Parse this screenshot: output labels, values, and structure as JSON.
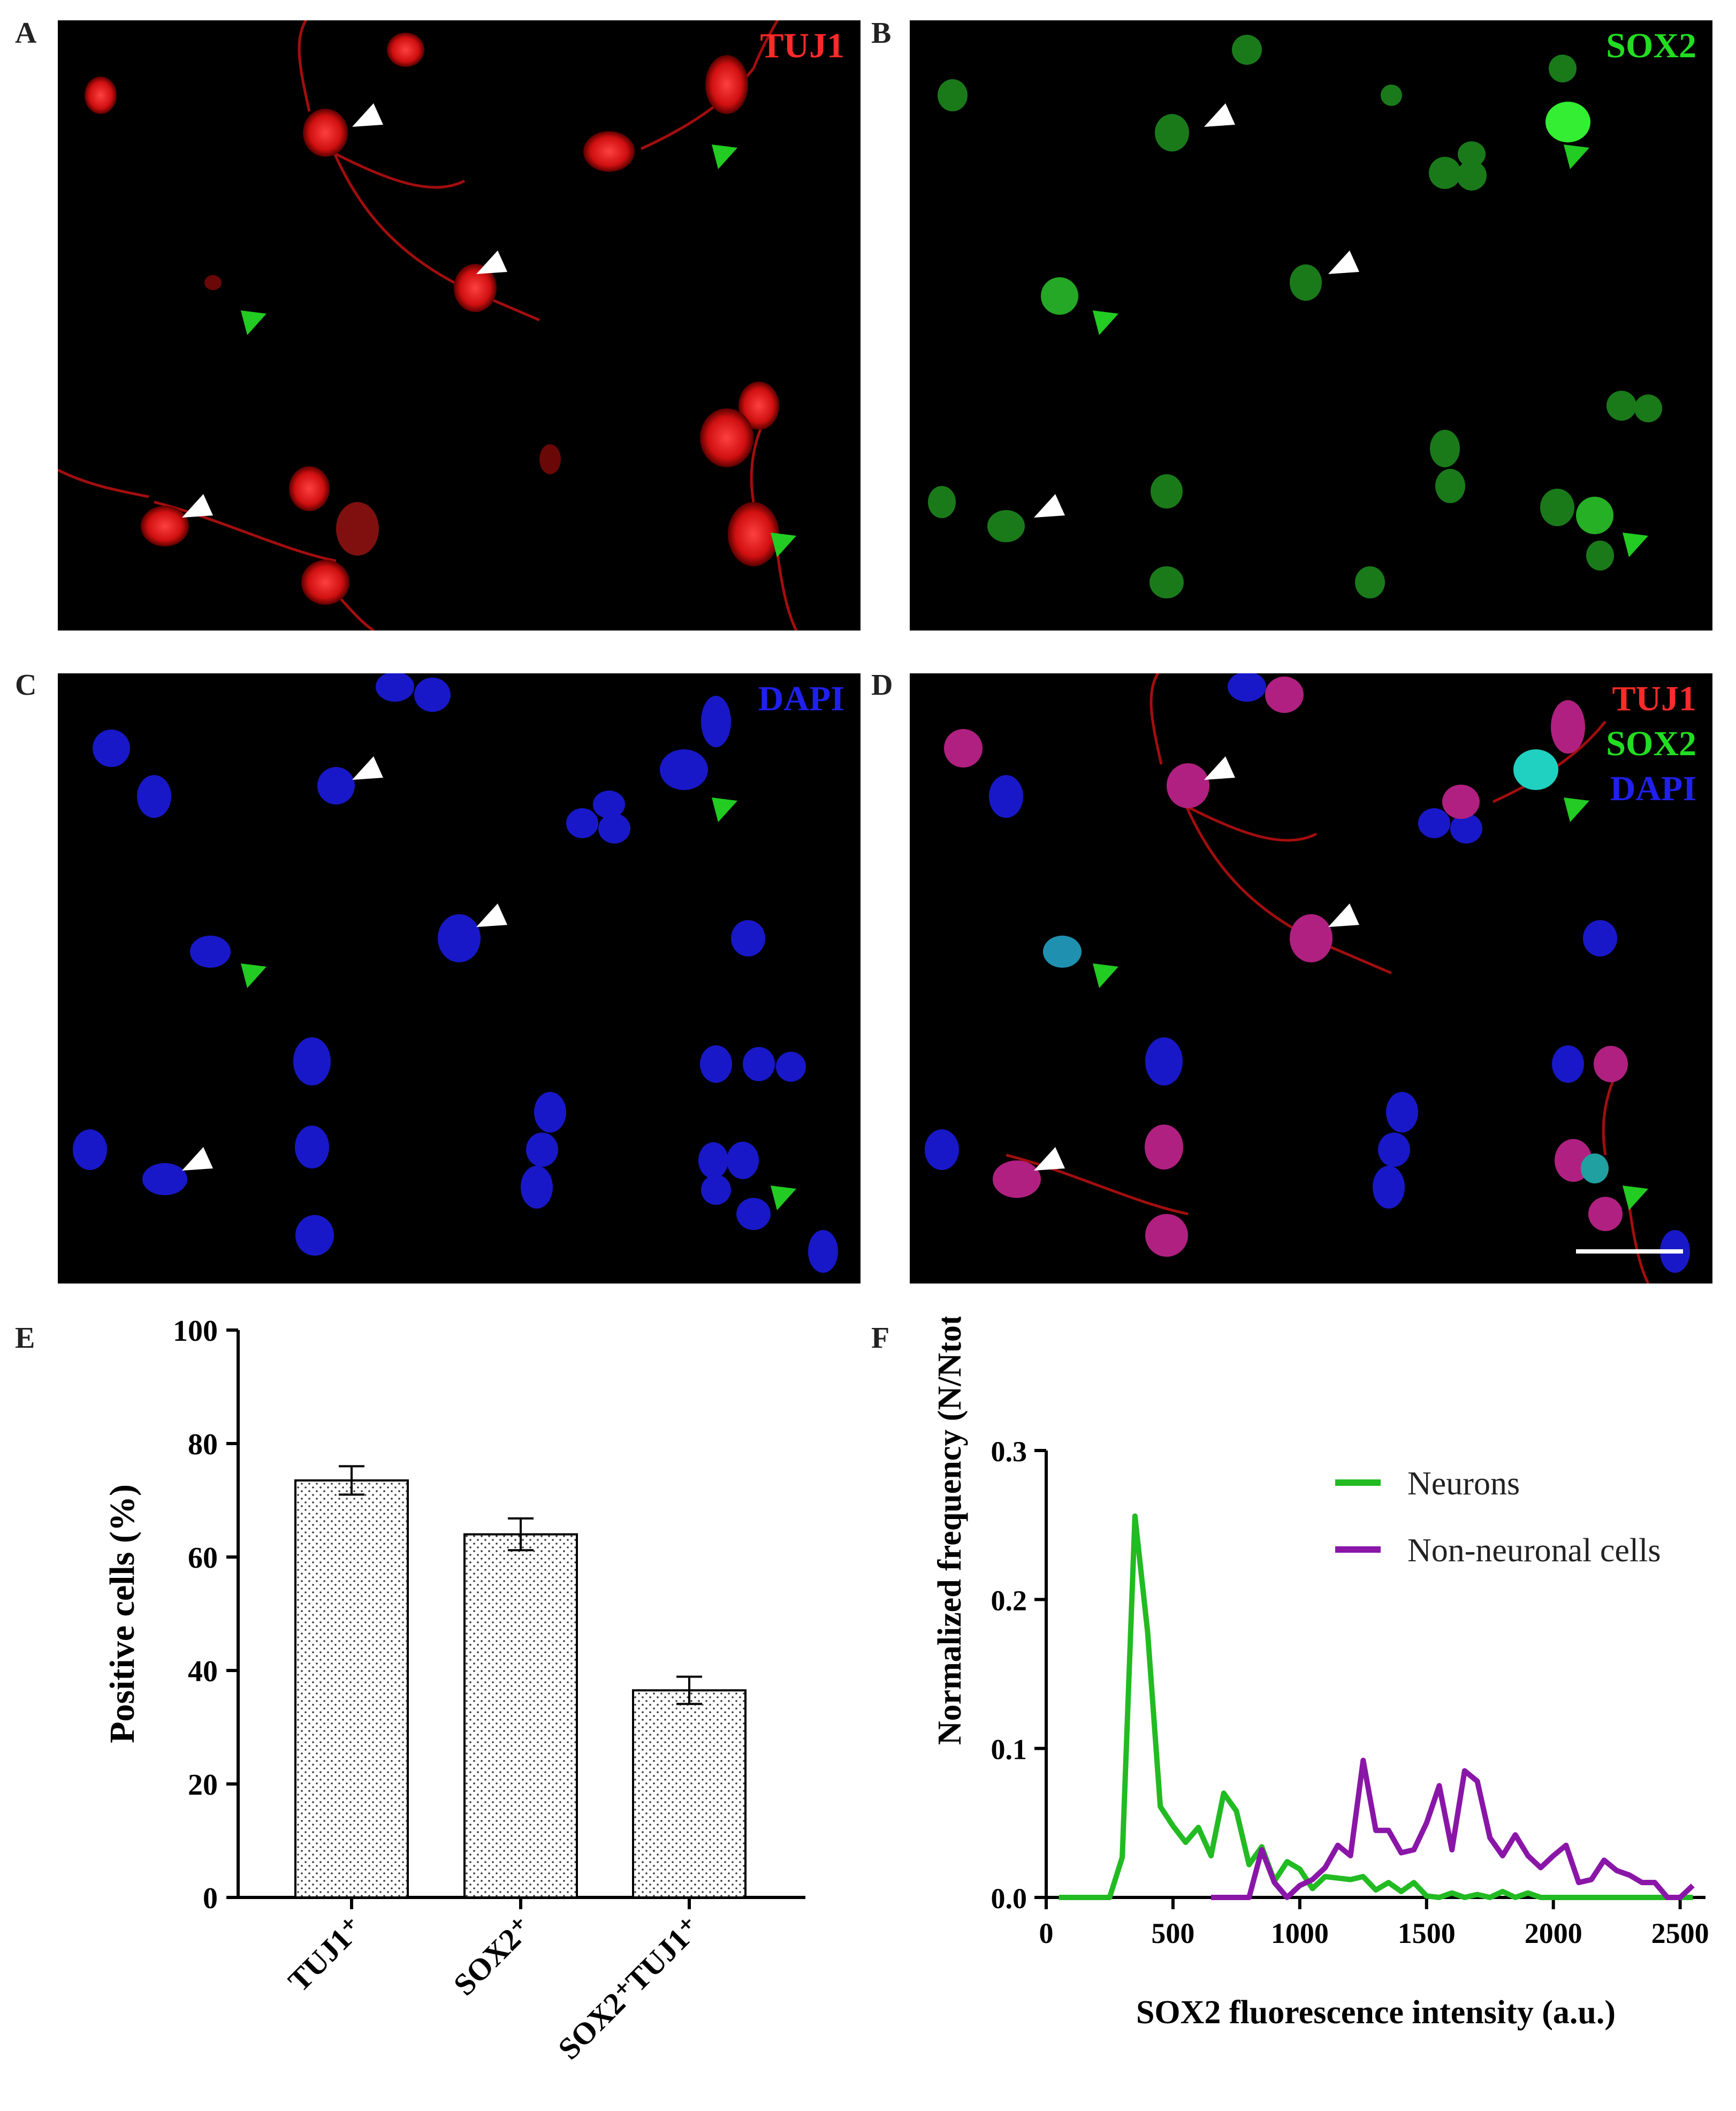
{
  "panels": {
    "A": {
      "letter": "A",
      "channels": [
        {
          "label": "TUJ1",
          "color": "#ff2a2a"
        }
      ]
    },
    "B": {
      "letter": "B",
      "channels": [
        {
          "label": "SOX2",
          "color": "#22dd22"
        }
      ]
    },
    "C": {
      "letter": "C",
      "channels": [
        {
          "label": "DAPI",
          "color": "#2020ee"
        }
      ]
    },
    "D": {
      "letter": "D",
      "channels": [
        {
          "label": "TUJ1",
          "color": "#ff2a2a"
        },
        {
          "label": "SOX2",
          "color": "#22dd22"
        },
        {
          "label": "DAPI",
          "color": "#2020ee"
        }
      ]
    },
    "E": {
      "letter": "E"
    },
    "F": {
      "letter": "F"
    }
  },
  "chart_data": [
    {
      "type": "bar",
      "panel": "E",
      "title": "",
      "xlabel": "",
      "ylabel": "Positive cells (%)",
      "ylim": [
        0,
        100
      ],
      "yticks": [
        0,
        20,
        40,
        60,
        80,
        100
      ],
      "categories": [
        "TUJ1⁺",
        "SOX2⁺",
        "SOX2⁺TUJ1⁺"
      ],
      "values": [
        73.5,
        64,
        36.5
      ],
      "errors": [
        2.5,
        2.8,
        2.4
      ],
      "pattern": "dotted"
    },
    {
      "type": "line",
      "panel": "F",
      "xlabel": "SOX2 fluorescence intensity (a.u.)",
      "ylabel": "Normalized frequency (N/Ntot)",
      "xlim": [
        0,
        2600
      ],
      "ylim": [
        0,
        0.3
      ],
      "xticks": [
        0,
        500,
        1000,
        1500,
        2000,
        2500
      ],
      "yticks": [
        0.0,
        0.1,
        0.2,
        0.3
      ],
      "ytick_labels": [
        "0.0",
        "0.1",
        "0.2",
        "0.3"
      ],
      "legend_position": "top-right",
      "series": [
        {
          "name": "Neurons",
          "color": "#22bb22",
          "x": [
            50,
            100,
            150,
            200,
            250,
            300,
            350,
            400,
            450,
            500,
            550,
            600,
            650,
            700,
            750,
            800,
            850,
            900,
            950,
            1000,
            1050,
            1100,
            1150,
            1200,
            1250,
            1300,
            1350,
            1400,
            1450,
            1500,
            1550,
            1600,
            1650,
            1700,
            1750,
            1800,
            1850,
            1900,
            1950,
            2000,
            2050,
            2100,
            2150,
            2200,
            2250,
            2300,
            2350,
            2400,
            2450,
            2500,
            2550
          ],
          "y": [
            0,
            0,
            0,
            0,
            0,
            0.027,
            0.256,
            0.178,
            0.061,
            0.048,
            0.037,
            0.047,
            0.028,
            0.07,
            0.058,
            0.022,
            0.034,
            0.011,
            0.024,
            0.019,
            0.006,
            0.014,
            0.013,
            0.012,
            0.014,
            0.005,
            0.01,
            0.004,
            0.01,
            0.001,
            0,
            0.003,
            0,
            0.002,
            0,
            0.004,
            0,
            0.003,
            0,
            0,
            0,
            0,
            0,
            0,
            0,
            0,
            0,
            0,
            0,
            0,
            0
          ]
        },
        {
          "name": "Non-neuronal cells",
          "color": "#8a16a8",
          "x": [
            650,
            700,
            750,
            800,
            850,
            900,
            950,
            1000,
            1050,
            1100,
            1150,
            1200,
            1250,
            1300,
            1350,
            1400,
            1450,
            1500,
            1550,
            1600,
            1650,
            1700,
            1750,
            1800,
            1850,
            1900,
            1950,
            2000,
            2050,
            2100,
            2150,
            2200,
            2250,
            2300,
            2350,
            2400,
            2450,
            2500,
            2550
          ],
          "y": [
            0,
            0,
            0,
            0,
            0.032,
            0.01,
            0,
            0.008,
            0.012,
            0.02,
            0.035,
            0.028,
            0.092,
            0.045,
            0.045,
            0.03,
            0.032,
            0.05,
            0.075,
            0.032,
            0.085,
            0.078,
            0.04,
            0.028,
            0.042,
            0.028,
            0.02,
            0.028,
            0.035,
            0.01,
            0.012,
            0.025,
            0.018,
            0.015,
            0.01,
            0.01,
            0,
            0,
            0.008
          ]
        }
      ]
    }
  ]
}
